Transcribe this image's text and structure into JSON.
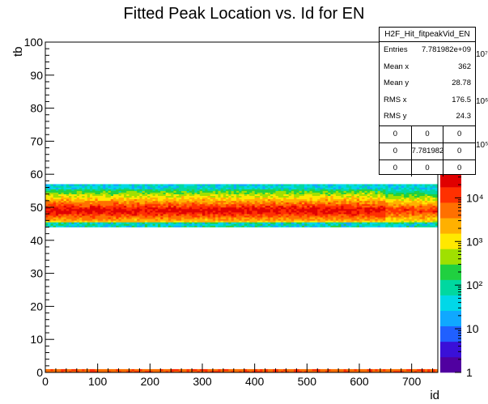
{
  "chart_data": {
    "type": "heatmap",
    "title": "Fitted Peak Location vs. Id for EN",
    "xlabel": "id",
    "ylabel": "tb",
    "xlim": [
      0,
      750
    ],
    "ylim": [
      0,
      100
    ],
    "x_ticks": [
      "0",
      "100",
      "200",
      "300",
      "400",
      "500",
      "600",
      "700"
    ],
    "y_ticks": [
      "0",
      "10",
      "20",
      "30",
      "40",
      "50",
      "60",
      "70",
      "80",
      "90",
      "100"
    ],
    "z_scale": "log",
    "z_ticks": [
      "1",
      "10",
      "10²",
      "10³",
      "10⁴"
    ],
    "z_exponent_labels": [
      "10⁵",
      "10⁶",
      "10⁷"
    ],
    "palette": [
      "#5000a0",
      "#3a10d8",
      "#2060ff",
      "#10a8ff",
      "#00d8e8",
      "#00d8a0",
      "#20d040",
      "#a0e000",
      "#ffe800",
      "#ffb000",
      "#ff7000",
      "#ff3000",
      "#e00000"
    ],
    "bands": [
      {
        "tb_min": 44,
        "tb_max": 57,
        "peak_tb": 48.8,
        "description": "main band"
      },
      {
        "tb_min": 0,
        "tb_max": 1,
        "description": "low band"
      }
    ],
    "stats_box": {
      "name": "H2F_Hit_fitpeakVid_EN",
      "entries_label": "Entries",
      "entries": "7.781982e+09",
      "mean_x_label": "Mean x",
      "mean_x": "362",
      "mean_y_label": "Mean y",
      "mean_y": "28.78",
      "rms_x_label": "RMS x",
      "rms_x": "176.5",
      "rms_y_label": "RMS y",
      "rms_y": "24.3",
      "overflow_grid": [
        [
          "0",
          "0",
          "0"
        ],
        [
          "0",
          "7.781982e+09",
          "0"
        ],
        [
          "0",
          "0",
          "0"
        ]
      ]
    }
  }
}
